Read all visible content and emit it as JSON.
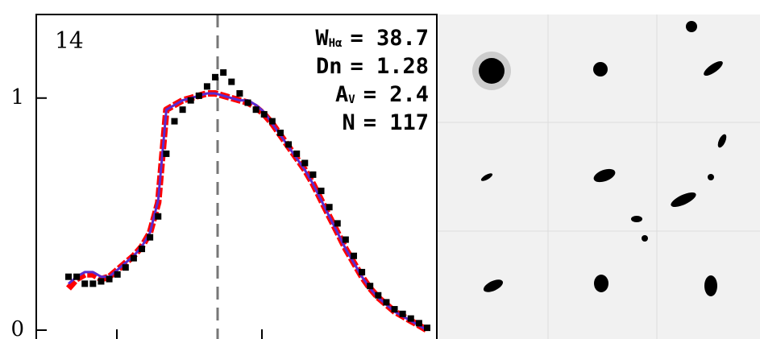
{
  "chart_data": {
    "type": "line",
    "panel_label": "14",
    "annotations": [
      {
        "symbol": "W",
        "sub": "Hα",
        "text": "= 38.7"
      },
      {
        "symbol": "Dn",
        "text": "= 1.28"
      },
      {
        "symbol": "A",
        "sub": "V",
        "text": "= 2.4"
      },
      {
        "symbol": "N",
        "text": "= 117"
      }
    ],
    "categories": [
      null,
      null,
      null,
      null,
      null,
      null,
      null,
      null,
      null,
      null,
      null,
      null,
      null,
      null,
      null,
      null,
      null,
      null,
      null,
      null,
      null,
      null,
      null,
      null,
      null,
      null,
      null,
      null,
      null,
      null,
      null,
      null,
      null,
      null,
      null,
      null,
      null,
      null,
      null,
      null,
      null,
      null,
      null,
      null,
      null
    ],
    "ylim": [
      0,
      1.36
    ],
    "yticks": [
      0,
      1
    ],
    "series": [
      {
        "color": "#ff0000",
        "style": "thick-line",
        "values": [
          0.18,
          0.22,
          0.24,
          0.24,
          0.22,
          0.23,
          0.26,
          0.29,
          0.32,
          0.36,
          0.42,
          0.55,
          0.95,
          0.97,
          0.99,
          1.0,
          1.01,
          1.02,
          1.02,
          1.01,
          1.0,
          0.99,
          0.98,
          0.96,
          0.93,
          0.89,
          0.84,
          0.79,
          0.74,
          0.69,
          0.63,
          0.56,
          0.49,
          0.42,
          0.35,
          0.29,
          0.23,
          0.18,
          0.14,
          0.11,
          0.08,
          0.06,
          0.04,
          0.02,
          0.0
        ]
      },
      {
        "color": "#5a2bd0",
        "style": "line",
        "values": [
          0.2,
          0.23,
          0.25,
          0.25,
          0.23,
          0.23,
          0.26,
          0.29,
          0.32,
          0.36,
          0.42,
          0.56,
          0.95,
          0.97,
          0.99,
          1.0,
          1.01,
          1.02,
          1.02,
          1.01,
          1.0,
          0.99,
          0.99,
          0.97,
          0.94,
          0.89,
          0.84,
          0.79,
          0.74,
          0.69,
          0.63,
          0.56,
          0.49,
          0.42,
          0.35,
          0.29,
          0.23,
          0.18,
          0.14,
          0.11,
          0.08,
          0.06,
          0.04,
          0.02,
          0.0
        ]
      },
      {
        "color": "#000000",
        "style": "squares",
        "values": [
          0.23,
          0.23,
          0.2,
          0.2,
          0.21,
          0.22,
          0.24,
          0.27,
          0.31,
          0.35,
          0.4,
          0.49,
          0.76,
          0.9,
          0.95,
          0.99,
          1.01,
          1.05,
          1.09,
          1.11,
          1.07,
          1.02,
          0.98,
          0.95,
          0.93,
          0.9,
          0.85,
          0.8,
          0.76,
          0.72,
          0.67,
          0.6,
          0.53,
          0.46,
          0.39,
          0.32,
          0.25,
          0.19,
          0.15,
          0.12,
          0.09,
          0.07,
          0.05,
          0.03,
          0.01
        ]
      }
    ]
  }
}
